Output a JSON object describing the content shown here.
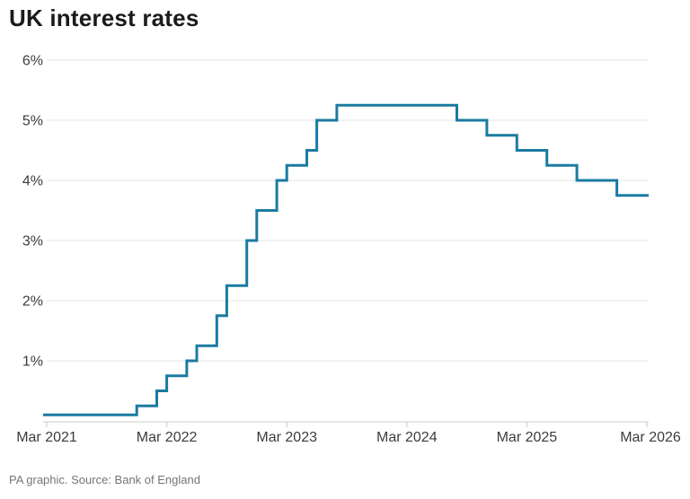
{
  "title": "UK interest rates",
  "source_note": "PA graphic. Source: Bank of England",
  "colors": {
    "line": "#1b7ba1",
    "gridline": "#e9e9e9",
    "axis_line": "#d6d6d6",
    "tick": "#cfcfcf",
    "axis_label": "#3c3c3c",
    "title_text": "#1b1b1b",
    "source_text": "#757575",
    "background": "#ffffff"
  },
  "chart_data": {
    "type": "line",
    "subtype": "step",
    "title": "UK interest rates",
    "xlabel": "",
    "ylabel": "",
    "unit": "%",
    "ylim": [
      0,
      6
    ],
    "grid": "horizontal",
    "legend": "none",
    "y_ticks": [
      {
        "value": 6,
        "label": "6%"
      },
      {
        "value": 5,
        "label": "5%"
      },
      {
        "value": 4,
        "label": "4%"
      },
      {
        "value": 3,
        "label": "3%"
      },
      {
        "value": 2,
        "label": "2%"
      },
      {
        "value": 1,
        "label": "1%"
      }
    ],
    "x_ticks": [
      {
        "month_index": 0,
        "label": "Mar 2021"
      },
      {
        "month_index": 12,
        "label": "Mar 2022"
      },
      {
        "month_index": 24,
        "label": "Mar 2023"
      },
      {
        "month_index": 36,
        "label": "Mar 2024"
      },
      {
        "month_index": 48,
        "label": "Mar 2025"
      },
      {
        "month_index": 60,
        "label": "Mar 2026"
      }
    ],
    "series": [
      {
        "name": "UK interest rate",
        "color": "#1b7ba1",
        "points": [
          {
            "date": "Mar 2021",
            "month_index": 0,
            "value": 0.1
          },
          {
            "date": "Dec 2021",
            "month_index": 9,
            "value": 0.25
          },
          {
            "date": "Feb 2022",
            "month_index": 11,
            "value": 0.5
          },
          {
            "date": "Mar 2022",
            "month_index": 12,
            "value": 0.75
          },
          {
            "date": "May 2022",
            "month_index": 14,
            "value": 1.0
          },
          {
            "date": "Jun 2022",
            "month_index": 15,
            "value": 1.25
          },
          {
            "date": "Aug 2022",
            "month_index": 17,
            "value": 1.75
          },
          {
            "date": "Sep 2022",
            "month_index": 18,
            "value": 2.25
          },
          {
            "date": "Nov 2022",
            "month_index": 20,
            "value": 3.0
          },
          {
            "date": "Dec 2022",
            "month_index": 21,
            "value": 3.5
          },
          {
            "date": "Feb 2023",
            "month_index": 23,
            "value": 4.0
          },
          {
            "date": "Mar 2023",
            "month_index": 24,
            "value": 4.25
          },
          {
            "date": "May 2023",
            "month_index": 26,
            "value": 4.5
          },
          {
            "date": "Jun 2023",
            "month_index": 27,
            "value": 5.0
          },
          {
            "date": "Aug 2023",
            "month_index": 29,
            "value": 5.25
          },
          {
            "date": "Aug 2024",
            "month_index": 41,
            "value": 5.0
          },
          {
            "date": "Nov 2024",
            "month_index": 44,
            "value": 4.75
          },
          {
            "date": "Feb 2025",
            "month_index": 47,
            "value": 4.5
          },
          {
            "date": "May 2025",
            "month_index": 50,
            "value": 4.25
          },
          {
            "date": "Aug 2025",
            "month_index": 53,
            "value": 4.0
          },
          {
            "date": "Dec 2025",
            "month_index": 57,
            "value": 3.75
          },
          {
            "date": "Mar 2026",
            "month_index": 60,
            "value": 3.75
          }
        ]
      }
    ]
  }
}
